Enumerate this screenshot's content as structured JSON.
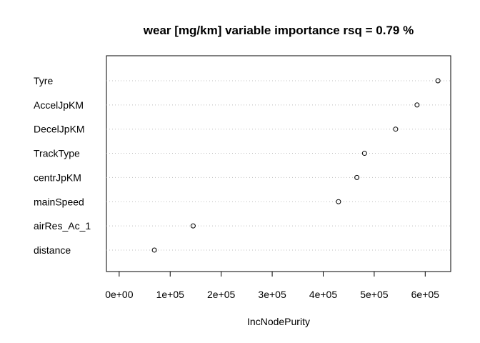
{
  "chart_data": {
    "type": "scatter",
    "title": "wear [mg/km] variable importance rsq = 0.79 %",
    "xlabel": "IncNodePurity",
    "ylabel": "",
    "categories": [
      "Tyre",
      "AccelJpKM",
      "DecelJpKM",
      "TrackType",
      "centrJpKM",
      "mainSpeed",
      "airRes_Ac_1",
      "distance"
    ],
    "values": [
      625000,
      584000,
      542000,
      481000,
      466000,
      430000,
      145000,
      69000
    ],
    "xlim": [
      -25000,
      650000
    ],
    "xticks": [
      0,
      100000,
      200000,
      300000,
      400000,
      500000,
      600000
    ],
    "xtick_labels": [
      "0e+00",
      "1e+05",
      "2e+05",
      "3e+05",
      "4e+05",
      "5e+05",
      "6e+05"
    ],
    "grid": "horizontal-dotted",
    "marker": "open-circle",
    "colors": {
      "point": "#000000",
      "grid": "#bebebe",
      "frame": "#000000"
    }
  }
}
